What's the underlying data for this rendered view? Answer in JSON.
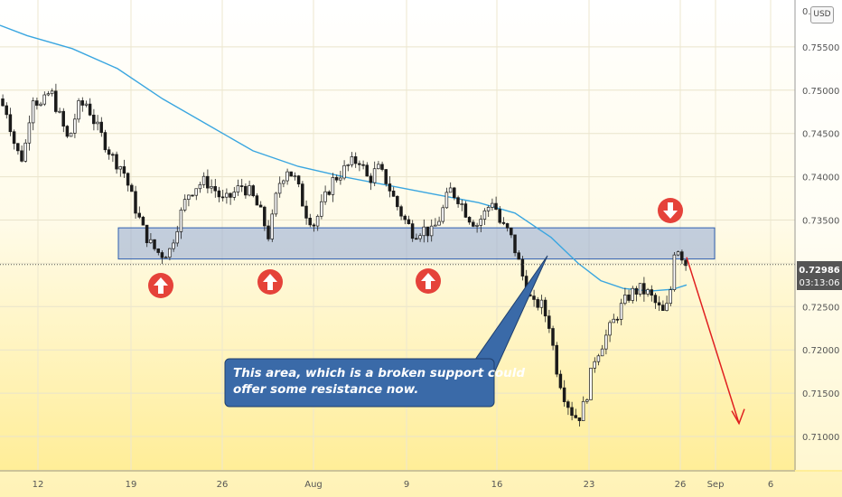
{
  "chart_data": {
    "type": "candlestick",
    "currency": "USD",
    "last_price": "0.72986",
    "countdown": "03:13:06",
    "y_ticks": [
      "0.75500",
      "0.75000",
      "0.74500",
      "0.74000",
      "0.73500",
      "0.72500",
      "0.72000",
      "0.71500",
      "0.71000"
    ],
    "y_top_partial": "0.",
    "x_ticks": [
      "12",
      "19",
      "26",
      "Aug",
      "9",
      "16",
      "23",
      "26",
      "Sep",
      "6"
    ],
    "ylim": [
      0.705,
      0.76
    ],
    "zone": {
      "low": 0.7305,
      "high": 0.7341
    },
    "annotation": "This area, which is a broken support could offer some resistance now.",
    "annotation_lines": [
      "This area, which is a broken support could",
      "offer some resistance now."
    ],
    "markers": [
      {
        "direction": "up",
        "label": "support bounce"
      },
      {
        "direction": "up",
        "label": "support bounce"
      },
      {
        "direction": "up",
        "label": "support bounce"
      },
      {
        "direction": "down",
        "label": "resistance"
      }
    ],
    "moving_average": [
      [
        0,
        0.7575
      ],
      [
        30,
        0.7563
      ],
      [
        80,
        0.7548
      ],
      [
        130,
        0.7525
      ],
      [
        180,
        0.749
      ],
      [
        230,
        0.746
      ],
      [
        280,
        0.743
      ],
      [
        330,
        0.7412
      ],
      [
        380,
        0.74
      ],
      [
        430,
        0.739
      ],
      [
        480,
        0.738
      ],
      [
        530,
        0.737
      ],
      [
        570,
        0.7358
      ],
      [
        610,
        0.733
      ],
      [
        640,
        0.73
      ],
      [
        665,
        0.728
      ],
      [
        690,
        0.7271
      ],
      [
        720,
        0.7268
      ],
      [
        745,
        0.727
      ],
      [
        760,
        0.7275
      ]
    ],
    "price_path": [
      [
        0,
        0.749
      ],
      [
        10,
        0.7475
      ],
      [
        20,
        0.743
      ],
      [
        28,
        0.742
      ],
      [
        38,
        0.7495
      ],
      [
        48,
        0.748
      ],
      [
        58,
        0.75
      ],
      [
        68,
        0.747
      ],
      [
        78,
        0.744
      ],
      [
        88,
        0.748
      ],
      [
        98,
        0.7485
      ],
      [
        108,
        0.746
      ],
      [
        118,
        0.744
      ],
      [
        128,
        0.742
      ],
      [
        138,
        0.741
      ],
      [
        150,
        0.737
      ],
      [
        160,
        0.734
      ],
      [
        170,
        0.732
      ],
      [
        180,
        0.731
      ],
      [
        190,
        0.7315
      ],
      [
        200,
        0.735
      ],
      [
        210,
        0.738
      ],
      [
        220,
        0.739
      ],
      [
        230,
        0.7395
      ],
      [
        240,
        0.7385
      ],
      [
        250,
        0.737
      ],
      [
        260,
        0.738
      ],
      [
        270,
        0.739
      ],
      [
        280,
        0.738
      ],
      [
        290,
        0.736
      ],
      [
        300,
        0.733
      ],
      [
        310,
        0.739
      ],
      [
        320,
        0.741
      ],
      [
        330,
        0.7395
      ],
      [
        340,
        0.736
      ],
      [
        350,
        0.7345
      ],
      [
        360,
        0.737
      ],
      [
        370,
        0.7395
      ],
      [
        380,
        0.7405
      ],
      [
        390,
        0.7415
      ],
      [
        400,
        0.742
      ],
      [
        410,
        0.7395
      ],
      [
        420,
        0.741
      ],
      [
        430,
        0.7395
      ],
      [
        440,
        0.737
      ],
      [
        450,
        0.735
      ],
      [
        460,
        0.7335
      ],
      [
        470,
        0.734
      ],
      [
        480,
        0.7335
      ],
      [
        490,
        0.7355
      ],
      [
        500,
        0.7385
      ],
      [
        510,
        0.7375
      ],
      [
        520,
        0.7355
      ],
      [
        530,
        0.7345
      ],
      [
        540,
        0.736
      ],
      [
        548,
        0.7375
      ],
      [
        556,
        0.7345
      ],
      [
        566,
        0.7335
      ],
      [
        574,
        0.731
      ],
      [
        582,
        0.728
      ],
      [
        592,
        0.725
      ],
      [
        600,
        0.7255
      ],
      [
        610,
        0.723
      ],
      [
        618,
        0.718
      ],
      [
        626,
        0.715
      ],
      [
        634,
        0.713
      ],
      [
        642,
        0.712
      ],
      [
        650,
        0.714
      ],
      [
        660,
        0.719
      ],
      [
        670,
        0.721
      ],
      [
        680,
        0.723
      ],
      [
        690,
        0.725
      ],
      [
        700,
        0.7265
      ],
      [
        710,
        0.727
      ],
      [
        720,
        0.7265
      ],
      [
        730,
        0.725
      ],
      [
        738,
        0.724
      ],
      [
        744,
        0.7265
      ],
      [
        748,
        0.7315
      ],
      [
        754,
        0.7318
      ],
      [
        760,
        0.73
      ]
    ],
    "projection": [
      [
        760,
        0.7307
      ],
      [
        818,
        0.7115
      ]
    ]
  }
}
